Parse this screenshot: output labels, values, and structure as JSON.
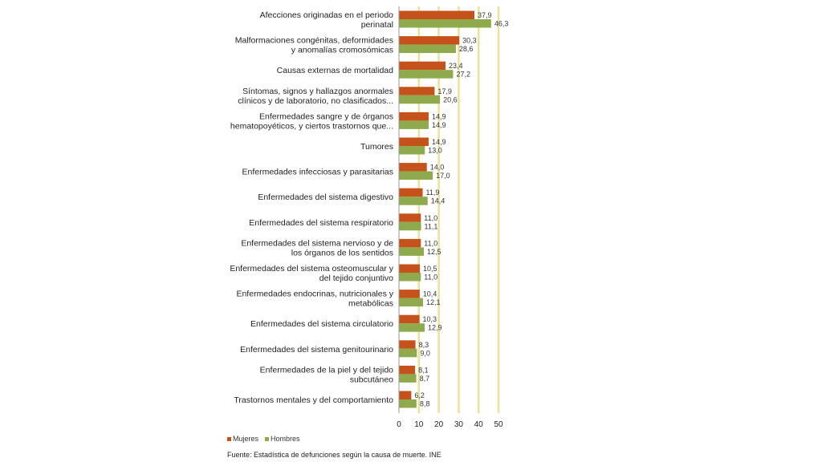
{
  "chart_data": {
    "type": "bar",
    "orientation": "horizontal",
    "categories": [
      [
        "Afecciones originadas en el periodo",
        "perinatal"
      ],
      [
        "Malformaciones congénitas, deformidades",
        "y anomalías cromosómicas"
      ],
      [
        "Causas externas de mortalidad"
      ],
      [
        "Síntomas, signos y hallazgos anormales",
        "clínicos y de laboratorio, no clasificados..."
      ],
      [
        "Enfermedades sangre y de órganos",
        "hematopoyéticos, y ciertos trastornos que..."
      ],
      [
        "Tumores"
      ],
      [
        "Enfermedades infecciosas y parasitarias"
      ],
      [
        "Enfermedades del sistema digestivo"
      ],
      [
        "Enfermedades del sistema respiratorio"
      ],
      [
        "Enfermedades del sistema nervioso y de",
        "los órganos de los sentidos"
      ],
      [
        "Enfermedades del sistema osteomuscular y",
        "del tejido conjuntivo"
      ],
      [
        "Enfermedades endocrinas, nutricionales y",
        "metabólicas"
      ],
      [
        "Enfermedades del sistema circulatorio"
      ],
      [
        "Enfermedades del sistema genitourinario"
      ],
      [
        "Enfermedades de la piel y del tejido",
        "subcutáneo"
      ],
      [
        "Trastornos mentales y del comportamiento"
      ]
    ],
    "series": [
      {
        "name": "Mujeres",
        "color": "#c5511b",
        "values": [
          37.9,
          30.3,
          23.4,
          17.9,
          14.9,
          14.9,
          14.0,
          11.9,
          11.0,
          11.0,
          10.5,
          10.4,
          10.3,
          8.3,
          8.1,
          6.2
        ],
        "labels": [
          "37,9",
          "30,3",
          "23,4",
          "17,9",
          "14,9",
          "14,9",
          "14,0",
          "11,9",
          "11,0",
          "11,0",
          "10,5",
          "10,4",
          "10,3",
          "8,3",
          "8,1",
          "6,2"
        ]
      },
      {
        "name": "Hombres",
        "color": "#8faa4c",
        "values": [
          46.3,
          28.6,
          27.2,
          20.6,
          14.9,
          13.0,
          17.0,
          14.4,
          11.1,
          12.5,
          11.0,
          12.1,
          12.9,
          9.0,
          8.7,
          8.8
        ],
        "labels": [
          "46,3",
          "28,6",
          "27,2",
          "20,6",
          "14,9",
          "13,0",
          "17,0",
          "14,4",
          "11,1",
          "12,5",
          "11,0",
          "12,1",
          "12,9",
          "9,0",
          "8,7",
          "8,8"
        ]
      }
    ],
    "xlim": [
      0,
      50
    ],
    "xticks": [
      0,
      10,
      20,
      30,
      40,
      50
    ],
    "gridline_color": "#e8e29a",
    "grid": true,
    "legend": "bottom-left",
    "source": "Fuente: Estadística de defunciones según la causa de muerte. INE"
  }
}
